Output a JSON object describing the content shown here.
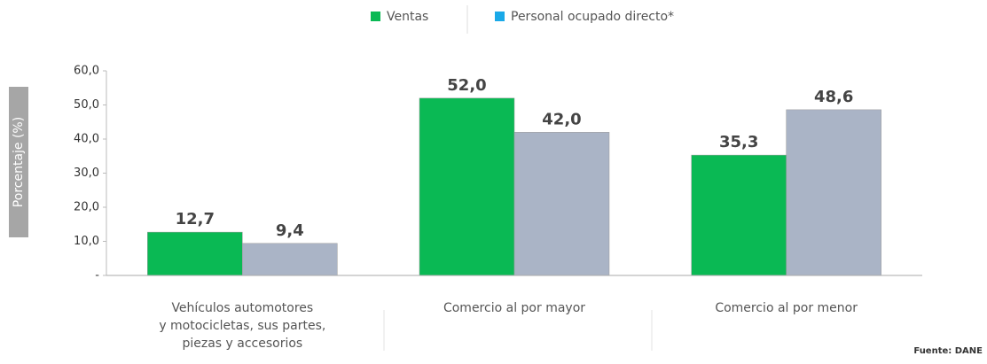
{
  "chart_data": {
    "type": "bar",
    "y_label": "Porcentaje (%)",
    "source": "Fuente: DANE",
    "categories": [
      "Vehículos automotores\ny motocicletas, sus partes,\npiezas y accesorios",
      "Comercio al por mayor",
      "Comercio al por menor"
    ],
    "series": [
      {
        "name": "Ventas",
        "color": "#0ab954",
        "legend_color": "#0ab954",
        "values": [
          12.7,
          52.0,
          35.3
        ],
        "value_labels": [
          "12,7",
          "52,0",
          "35,3"
        ]
      },
      {
        "name": "Personal ocupado directo*",
        "color": "#aab4c6",
        "legend_color": "#1aa9e8",
        "values": [
          9.4,
          42.0,
          48.6
        ],
        "value_labels": [
          "9,4",
          "42,0",
          "48,6"
        ]
      }
    ],
    "ylim": [
      0,
      60
    ],
    "yticks": [
      {
        "value": 0,
        "label": "-"
      },
      {
        "value": 10,
        "label": "10,0"
      },
      {
        "value": 20,
        "label": "20,0"
      },
      {
        "value": 30,
        "label": "30,0"
      },
      {
        "value": 40,
        "label": "40,0"
      },
      {
        "value": 50,
        "label": "50,0"
      },
      {
        "value": 60,
        "label": "60,0"
      }
    ],
    "grid": false
  }
}
